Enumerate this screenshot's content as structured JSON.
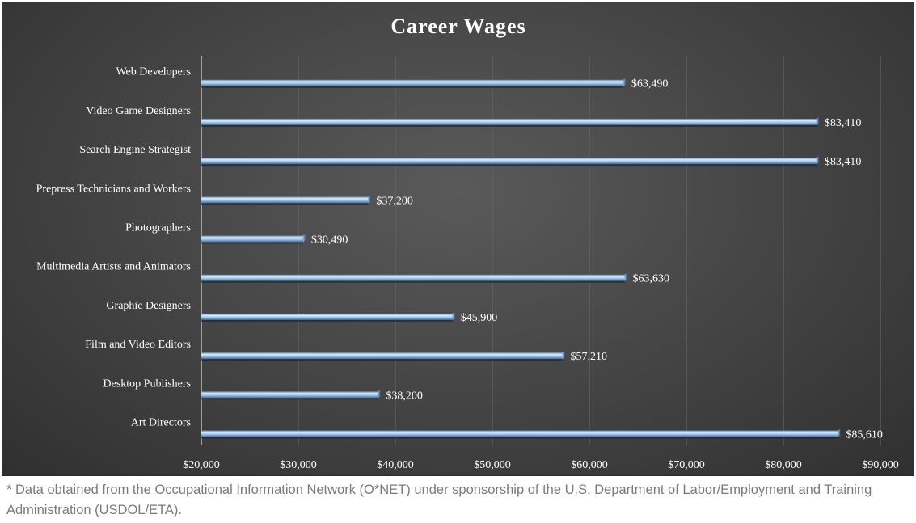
{
  "chart_data": {
    "type": "bar",
    "orientation": "horizontal",
    "title": "Career Wages",
    "categories": [
      "Art Directors",
      "Desktop Publishers",
      "Film and Video Editors",
      "Graphic Designers",
      "Multimedia Artists and Animators",
      "Photographers",
      "Prepress Technicians and Workers",
      "Search Engine Strategist",
      "Video Game Designers",
      "Web Developers"
    ],
    "values": [
      85610,
      38200,
      57210,
      45900,
      63630,
      30490,
      37200,
      83410,
      83410,
      63490
    ],
    "value_labels": [
      "$85,610",
      "$38,200",
      "$57,210",
      "$45,900",
      "$63,630",
      "$30,490",
      "$37,200",
      "$83,410",
      "$83,410",
      "$63,490"
    ],
    "xlim": [
      20000,
      90000
    ],
    "xticks": [
      20000,
      30000,
      40000,
      50000,
      60000,
      70000,
      80000,
      90000
    ],
    "xtick_labels": [
      "$20,000",
      "$30,000",
      "$40,000",
      "$50,000",
      "$60,000",
      "$70,000",
      "$80,000",
      "$90,000"
    ],
    "xlabel": "",
    "ylabel": "",
    "grid": true,
    "legend": "none",
    "colors": {
      "bar": "#9ec3ec",
      "bar_highlight": "#dcebfb",
      "bar_shadow": "#4f78a8",
      "background": "#474747",
      "gridline": "#6a6a6a",
      "text": "#ffffff"
    }
  },
  "footnote": "* Data obtained from the Occupational Information Network (O*NET) under sponsorship of the U.S. Department of Labor/Employment and Training Administration (USDOL/ETA)."
}
